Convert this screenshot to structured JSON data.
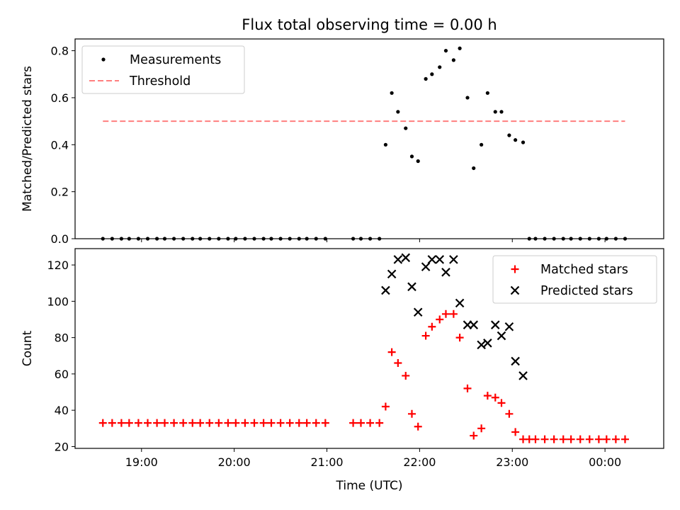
{
  "chart_data": [
    {
      "type": "scatter",
      "title": "Flux total observing time = 0.00 h",
      "ylabel": "Matched/Predicted stars",
      "xlabel": "",
      "ylim": [
        0,
        0.85
      ],
      "yticks": [
        "0.0",
        "0.2",
        "0.4",
        "0.6",
        "0.8"
      ],
      "ytick_values": [
        0,
        0.2,
        0.4,
        0.6,
        0.8
      ],
      "legend_position": "upper-left",
      "series": [
        {
          "name": "Measurements",
          "color": "#000000",
          "marker": "dot",
          "x": [
            "18:35",
            "18:41",
            "18:47",
            "18:52",
            "18:58",
            "19:04",
            "19:10",
            "19:15",
            "19:21",
            "19:27",
            "19:33",
            "19:38",
            "19:44",
            "19:50",
            "19:56",
            "20:01",
            "20:07",
            "20:13",
            "20:19",
            "20:24",
            "20:30",
            "20:36",
            "20:42",
            "20:47",
            "20:53",
            "20:59",
            "21:17",
            "21:22",
            "21:28",
            "21:34",
            "21:38",
            "21:42",
            "21:46",
            "21:51",
            "21:55",
            "21:59",
            "22:04",
            "22:08",
            "22:13",
            "22:17",
            "22:22",
            "22:26",
            "22:31",
            "22:35",
            "22:40",
            "22:44",
            "22:49",
            "22:53",
            "22:58",
            "23:02",
            "23:07",
            "23:11",
            "23:15",
            "23:21",
            "23:27",
            "23:33",
            "23:38",
            "23:44",
            "23:50",
            "23:56",
            "00:01",
            "00:07",
            "00:13"
          ],
          "y": [
            0,
            0,
            0,
            0,
            0,
            0,
            0,
            0,
            0,
            0,
            0,
            0,
            0,
            0,
            0,
            0,
            0,
            0,
            0,
            0,
            0,
            0,
            0,
            0,
            0,
            0,
            0,
            0,
            0,
            0,
            0.4,
            0.62,
            0.54,
            0.47,
            0.35,
            0.33,
            0.68,
            0.7,
            0.73,
            0.8,
            0.76,
            0.81,
            0.6,
            0.3,
            0.4,
            0.62,
            0.54,
            0.54,
            0.44,
            0.42,
            0.41,
            0,
            0,
            0,
            0,
            0,
            0,
            0,
            0,
            0,
            0,
            0,
            0
          ]
        },
        {
          "name": "Threshold",
          "color": "#ff7f7f",
          "style": "dashed",
          "x": [
            "18:35",
            "00:13"
          ],
          "y": [
            0.5,
            0.5
          ]
        }
      ]
    },
    {
      "type": "scatter",
      "title": "",
      "ylabel": "Count",
      "xlabel": "Time (UTC)",
      "ylim": [
        19,
        129
      ],
      "yticks": [
        "20",
        "40",
        "60",
        "80",
        "100",
        "120"
      ],
      "ytick_values": [
        20,
        40,
        60,
        80,
        100,
        120
      ],
      "xlim": [
        "18:17",
        "00:38"
      ],
      "xticks": [
        "19:00",
        "20:00",
        "21:00",
        "22:00",
        "23:00",
        "00:00"
      ],
      "legend_position": "upper-right",
      "series": [
        {
          "name": "Matched stars",
          "color": "#ff0000",
          "marker": "plus",
          "x": [
            "18:35",
            "18:41",
            "18:47",
            "18:52",
            "18:58",
            "19:04",
            "19:10",
            "19:15",
            "19:21",
            "19:27",
            "19:33",
            "19:38",
            "19:44",
            "19:50",
            "19:56",
            "20:01",
            "20:07",
            "20:13",
            "20:19",
            "20:24",
            "20:30",
            "20:36",
            "20:42",
            "20:47",
            "20:53",
            "20:59",
            "21:17",
            "21:22",
            "21:28",
            "21:34",
            "21:38",
            "21:42",
            "21:46",
            "21:51",
            "21:55",
            "21:59",
            "22:04",
            "22:08",
            "22:13",
            "22:17",
            "22:22",
            "22:26",
            "22:31",
            "22:35",
            "22:40",
            "22:44",
            "22:49",
            "22:53",
            "22:58",
            "23:02",
            "23:07",
            "23:11",
            "23:15",
            "23:21",
            "23:27",
            "23:33",
            "23:38",
            "23:44",
            "23:50",
            "23:56",
            "00:01",
            "00:07",
            "00:13"
          ],
          "y": [
            33,
            33,
            33,
            33,
            33,
            33,
            33,
            33,
            33,
            33,
            33,
            33,
            33,
            33,
            33,
            33,
            33,
            33,
            33,
            33,
            33,
            33,
            33,
            33,
            33,
            33,
            33,
            33,
            33,
            33,
            42,
            72,
            66,
            59,
            38,
            31,
            81,
            86,
            90,
            93,
            93,
            80,
            52,
            26,
            30,
            48,
            47,
            44,
            38,
            28,
            24,
            24,
            24,
            24,
            24,
            24,
            24,
            24,
            24,
            24,
            24,
            24,
            24
          ]
        },
        {
          "name": "Predicted stars",
          "color": "#000000",
          "marker": "x",
          "x": [
            "21:38",
            "21:42",
            "21:46",
            "21:51",
            "21:55",
            "21:59",
            "22:04",
            "22:08",
            "22:13",
            "22:17",
            "22:22",
            "22:26",
            "22:31",
            "22:35",
            "22:40",
            "22:44",
            "22:49",
            "22:53",
            "22:58",
            "23:02",
            "23:07",
            "23:11",
            "23:15"
          ],
          "y": [
            106,
            115,
            123,
            124,
            108,
            94,
            119,
            123,
            123,
            116,
            123,
            99,
            87,
            87,
            76,
            77,
            87,
            81,
            86,
            67,
            59,
            null,
            null
          ]
        }
      ]
    }
  ]
}
